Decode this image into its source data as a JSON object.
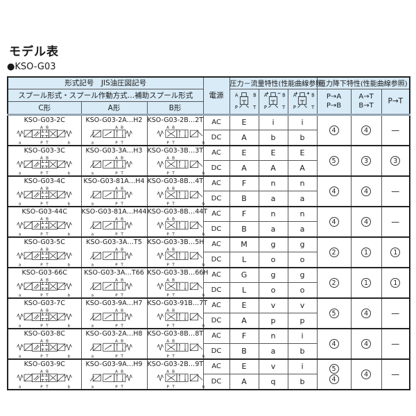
{
  "page": {
    "title": "モデル表",
    "model_label": "●KSO-G03"
  },
  "colors": {
    "header_bg": "#d8ebf7",
    "grid_border": "#555555",
    "heavy_border": "#222222",
    "header_divider": "#93a5b1"
  },
  "table": {
    "header": {
      "model_symbol": "形式記号　JIS油圧図記号",
      "spool": "スプール形式・スプール作動方式…補助スプール形式",
      "col_c": "C形",
      "col_a": "A形",
      "col_b": "B形",
      "power": "電源",
      "flow": "圧力－流量特性(性能曲線参照)",
      "drop": "圧力降下特性(性能曲線参照)",
      "pa_lines": [
        "P→A",
        "P→B"
      ],
      "at_lines": [
        "A→T",
        "B→T"
      ],
      "pt": "P→T",
      "symbol_ports": {
        "tl": "A",
        "tr": "B",
        "bl": "P",
        "br": "T"
      },
      "symbol_names": [
        "center-closed-symbol",
        "center-all-ports-blocked-drain-symbol",
        "center-ab-drain-symbol"
      ]
    },
    "diagram_labels": {
      "top1": "A",
      "top2": "B",
      "bot1": "P",
      "bot2": "T",
      "left": "a",
      "right": "b"
    },
    "power_options": [
      "AC",
      "DC"
    ],
    "empty_mark": "—",
    "rows": [
      {
        "c": "KSO-G03-2C",
        "a": "KSO-G03-2A…H2",
        "b": "KSO-G03-2B…2T",
        "ac": [
          "E",
          "i",
          "i"
        ],
        "dc": [
          "A",
          "b",
          "b"
        ],
        "pa": [
          "4"
        ],
        "at": [
          "4"
        ],
        "pt": []
      },
      {
        "c": "KSO-G03-3C",
        "a": "KSO-G03-3A…H3",
        "b": "KSO-G03-3B…3T",
        "ac": [
          "E",
          "E",
          "E"
        ],
        "dc": [
          "A",
          "A",
          "A"
        ],
        "pa": [
          "5"
        ],
        "at": [
          "3"
        ],
        "pt": [
          "3"
        ]
      },
      {
        "c": "KSO-G03-4C",
        "a": "KSO-G03-81A…H4",
        "b": "KSO-G03-8B…4T",
        "ac": [
          "F",
          "n",
          "n"
        ],
        "dc": [
          "B",
          "a",
          "a"
        ],
        "pa": [
          "4"
        ],
        "at": [
          "4"
        ],
        "pt": []
      },
      {
        "c": "KSO-G03-44C",
        "a": "KSO-G03-81A…H44",
        "b": "KSO-G03-8B…44T",
        "ac": [
          "F",
          "n",
          "n"
        ],
        "dc": [
          "B",
          "a",
          "a"
        ],
        "pa": [
          "4"
        ],
        "at": [
          "4"
        ],
        "pt": []
      },
      {
        "c": "KSO-G03-5C",
        "a": "KSO-G03-3A…T5",
        "b": "KSO-G03-3B…5H",
        "ac": [
          "M",
          "g",
          "g"
        ],
        "dc": [
          "L",
          "o",
          "o"
        ],
        "pa": [
          "2"
        ],
        "at": [
          "1"
        ],
        "pt": [
          "1"
        ]
      },
      {
        "c": "KSO-G03-66C",
        "a": "KSO-G03-3A…T66",
        "b": "KSO-G03-3B…66H",
        "ac": [
          "G",
          "g",
          "g"
        ],
        "dc": [
          "L",
          "o",
          "o"
        ],
        "pa": [
          "2"
        ],
        "at": [
          "1"
        ],
        "pt": [
          "1"
        ]
      },
      {
        "c": "KSO-G03-7C",
        "a": "KSO-G03-9A…H7",
        "b": "KSO-G03-91B…7T",
        "ac": [
          "E",
          "v",
          "v"
        ],
        "dc": [
          "A",
          "p",
          "p"
        ],
        "pa": [
          "5"
        ],
        "at": [
          "4"
        ],
        "pt": []
      },
      {
        "c": "KSO-G03-8C",
        "a": "KSO-G03-2A…H8",
        "b": "KSO-G03-8B…8T",
        "ac": [
          "F",
          "n",
          "i"
        ],
        "dc": [
          "B",
          "a",
          "b"
        ],
        "pa": [
          "4"
        ],
        "at": [
          "4"
        ],
        "pt": []
      },
      {
        "c": "KSO-G03-9C",
        "a": "KSO-G03-9A…H9",
        "b": "KSO-G03-2B…9T",
        "ac": [
          "E",
          "v",
          "i"
        ],
        "dc": [
          "A",
          "q",
          "b"
        ],
        "pa": [
          "5",
          "4"
        ],
        "at": [
          "4"
        ],
        "pt": []
      }
    ]
  }
}
